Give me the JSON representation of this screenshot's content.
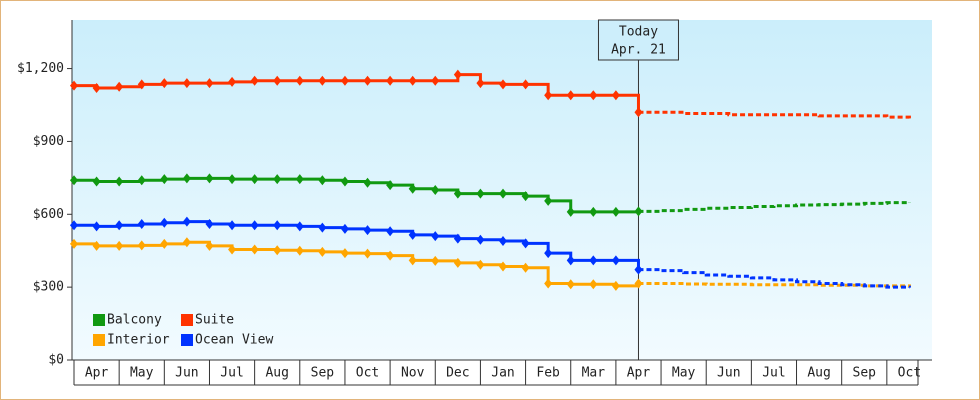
{
  "chart_data": {
    "type": "line",
    "stepped": true,
    "categories": [
      "Apr",
      null,
      "May",
      null,
      "Jun",
      null,
      "Jul",
      null,
      "Aug",
      null,
      "Sep",
      null,
      "Oct",
      null,
      "Nov",
      null,
      "Dec",
      null,
      "Jan",
      null,
      "Feb",
      null,
      "Mar",
      null,
      "Apr",
      null,
      "May",
      null,
      "Jun",
      null,
      "Jul",
      null,
      "Aug",
      null,
      "Sep",
      null,
      "Oct",
      null
    ],
    "ylim": [
      0,
      1400
    ],
    "yticks": [
      {
        "value": 0,
        "label": "$0"
      },
      {
        "value": 300,
        "label": "$300"
      },
      {
        "value": 600,
        "label": "$600"
      },
      {
        "value": 900,
        "label": "$900"
      },
      {
        "value": 1200,
        "label": "$1,200"
      }
    ],
    "annotation": {
      "lines": [
        "Today",
        "Apr. 21"
      ]
    },
    "series": [
      {
        "name": "Balcony",
        "color": "#119911",
        "values": [
          740,
          735,
          735,
          740,
          745,
          748,
          748,
          745,
          745,
          745,
          745,
          740,
          735,
          730,
          720,
          705,
          700,
          685,
          685,
          685,
          675,
          655,
          610,
          610,
          610,
          612,
          null,
          null,
          null,
          null,
          null,
          null,
          null,
          null,
          null,
          null,
          null,
          null
        ],
        "forecast": [
          null,
          null,
          null,
          null,
          null,
          null,
          null,
          null,
          null,
          null,
          null,
          null,
          null,
          null,
          null,
          null,
          null,
          null,
          null,
          null,
          null,
          null,
          null,
          null,
          null,
          612,
          615,
          620,
          625,
          628,
          632,
          635,
          638,
          640,
          642,
          645,
          648,
          650
        ]
      },
      {
        "name": "Suite",
        "color": "#ff3300",
        "values": [
          1130,
          1120,
          1125,
          1135,
          1140,
          1140,
          1140,
          1145,
          1150,
          1150,
          1150,
          1150,
          1150,
          1150,
          1150,
          1150,
          1150,
          1175,
          1140,
          1135,
          1135,
          1090,
          1090,
          1090,
          1090,
          1020,
          null,
          null,
          null,
          null,
          null,
          null,
          null,
          null,
          null,
          null,
          null,
          null
        ],
        "forecast": [
          null,
          null,
          null,
          null,
          null,
          null,
          null,
          null,
          null,
          null,
          null,
          null,
          null,
          null,
          null,
          null,
          null,
          null,
          null,
          null,
          null,
          null,
          null,
          null,
          null,
          1020,
          1020,
          1015,
          1015,
          1010,
          1010,
          1010,
          1010,
          1005,
          1005,
          1005,
          1000,
          995
        ]
      },
      {
        "name": "Interior",
        "color": "#ffa500",
        "values": [
          478,
          470,
          470,
          472,
          478,
          485,
          470,
          455,
          455,
          452,
          450,
          445,
          440,
          438,
          430,
          410,
          408,
          400,
          392,
          385,
          380,
          315,
          312,
          312,
          305,
          315,
          null,
          null,
          null,
          null,
          null,
          null,
          null,
          null,
          null,
          null,
          null,
          null
        ],
        "forecast": [
          null,
          null,
          null,
          null,
          null,
          null,
          null,
          null,
          null,
          null,
          null,
          null,
          null,
          null,
          null,
          null,
          null,
          null,
          null,
          null,
          null,
          null,
          null,
          null,
          null,
          315,
          315,
          313,
          312,
          312,
          310,
          310,
          310,
          308,
          308,
          305,
          305,
          300
        ]
      },
      {
        "name": "Ocean View",
        "color": "#0033ff",
        "values": [
          555,
          550,
          555,
          560,
          565,
          570,
          560,
          555,
          555,
          555,
          550,
          545,
          540,
          535,
          530,
          515,
          510,
          500,
          495,
          490,
          480,
          440,
          410,
          410,
          410,
          372,
          null,
          null,
          null,
          null,
          null,
          null,
          null,
          null,
          null,
          null,
          null,
          null
        ],
        "forecast": [
          null,
          null,
          null,
          null,
          null,
          null,
          null,
          null,
          null,
          null,
          null,
          null,
          null,
          null,
          null,
          null,
          null,
          null,
          null,
          null,
          null,
          null,
          null,
          null,
          null,
          372,
          368,
          360,
          350,
          345,
          338,
          330,
          322,
          315,
          310,
          305,
          300,
          298
        ]
      }
    ]
  }
}
